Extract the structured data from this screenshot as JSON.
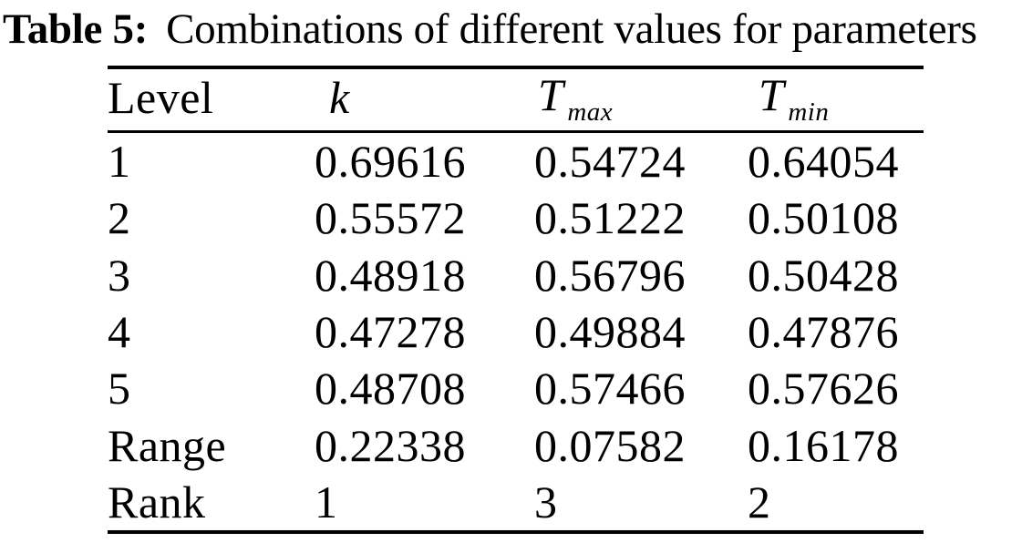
{
  "caption": {
    "label": "Table 5:",
    "text": "Combinations of different values for parameters"
  },
  "table": {
    "headers": {
      "col1": "Level",
      "col2": "k",
      "col3_base": "T",
      "col3_sub": "max",
      "col4_base": "T",
      "col4_sub": "min"
    },
    "rows": [
      [
        "1",
        "0.69616",
        "0.54724",
        "0.64054"
      ],
      [
        "2",
        "0.55572",
        "0.51222",
        "0.50108"
      ],
      [
        "3",
        "0.48918",
        "0.56796",
        "0.50428"
      ],
      [
        "4",
        "0.47278",
        "0.49884",
        "0.47876"
      ],
      [
        "5",
        "0.48708",
        "0.57466",
        "0.57626"
      ],
      [
        "Range",
        "0.22338",
        "0.07582",
        "0.16178"
      ],
      [
        "Rank",
        "1",
        "3",
        "2"
      ]
    ]
  },
  "colors": {
    "text": "#000000",
    "background": "#ffffff",
    "rule": "#000000"
  }
}
